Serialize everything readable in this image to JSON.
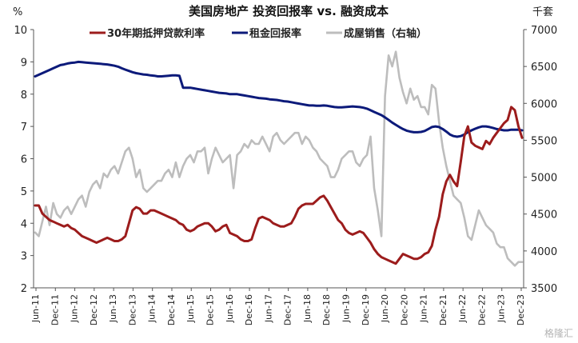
{
  "chart_data": {
    "type": "line",
    "title": "美国房地产 投资回报率 vs. 融资成本",
    "left_axis_label": "%",
    "right_axis_label": "千套",
    "left_ylim": [
      2,
      10
    ],
    "left_yticks": [
      2,
      3,
      4,
      5,
      6,
      7,
      8,
      9,
      10
    ],
    "right_ylim": [
      3500,
      7000
    ],
    "right_yticks": [
      3500,
      4000,
      4500,
      5000,
      5500,
      6000,
      6500,
      7000
    ],
    "x_tick_labels": [
      "Jun-11",
      "Dec-11",
      "Jun-12",
      "Dec-12",
      "Jun-13",
      "Dec-13",
      "Jun-14",
      "Dec-14",
      "Jun-15",
      "Dec-15",
      "Jun-16",
      "Dec-16",
      "Jun-17",
      "Dec-17",
      "Jun-18",
      "Dec-18",
      "Jun-19",
      "Dec-19",
      "Jun-20",
      "Dec-20",
      "Jun-21",
      "Dec-21",
      "Jun-22",
      "Dec-22",
      "Jun-23",
      "Dec-23"
    ],
    "x_start": "Jun-11",
    "x_end": "Dec-23",
    "grid": false,
    "legend_position": "top",
    "series": [
      {
        "name": "30年期抵押贷款利率",
        "axis": "left",
        "color": "#9c1c1c",
        "values": [
          4.55,
          4.55,
          4.3,
          4.2,
          4.1,
          4.05,
          4.0,
          3.95,
          3.9,
          3.95,
          3.85,
          3.8,
          3.7,
          3.6,
          3.55,
          3.5,
          3.45,
          3.4,
          3.45,
          3.5,
          3.55,
          3.5,
          3.45,
          3.45,
          3.5,
          3.6,
          4.0,
          4.4,
          4.5,
          4.45,
          4.3,
          4.3,
          4.4,
          4.4,
          4.35,
          4.3,
          4.25,
          4.2,
          4.15,
          4.1,
          4.0,
          3.95,
          3.8,
          3.75,
          3.8,
          3.9,
          3.95,
          4.0,
          4.0,
          3.9,
          3.75,
          3.8,
          3.9,
          3.95,
          3.7,
          3.65,
          3.6,
          3.5,
          3.45,
          3.45,
          3.5,
          3.85,
          4.15,
          4.2,
          4.15,
          4.1,
          4.0,
          3.95,
          3.9,
          3.9,
          3.95,
          4.0,
          4.2,
          4.45,
          4.55,
          4.6,
          4.6,
          4.6,
          4.7,
          4.8,
          4.85,
          4.7,
          4.5,
          4.3,
          4.1,
          4.0,
          3.8,
          3.7,
          3.65,
          3.7,
          3.75,
          3.7,
          3.55,
          3.4,
          3.2,
          3.05,
          2.95,
          2.9,
          2.85,
          2.8,
          2.75,
          2.9,
          3.05,
          3.0,
          2.95,
          2.9,
          2.9,
          2.95,
          3.05,
          3.1,
          3.3,
          3.8,
          4.2,
          4.9,
          5.3,
          5.5,
          5.3,
          5.15,
          5.9,
          6.7,
          7.0,
          6.5,
          6.4,
          6.35,
          6.3,
          6.55,
          6.45,
          6.65,
          6.8,
          6.95,
          7.1,
          7.2,
          7.6,
          7.5,
          7.0,
          6.65
        ]
      },
      {
        "name": "租金回报率",
        "axis": "left",
        "color": "#0c1a7a",
        "values": [
          8.55,
          8.6,
          8.65,
          8.7,
          8.75,
          8.8,
          8.85,
          8.9,
          8.92,
          8.95,
          8.97,
          8.98,
          9.0,
          8.99,
          8.98,
          8.97,
          8.96,
          8.95,
          8.94,
          8.93,
          8.92,
          8.9,
          8.88,
          8.85,
          8.8,
          8.76,
          8.72,
          8.68,
          8.65,
          8.63,
          8.61,
          8.6,
          8.58,
          8.57,
          8.55,
          8.55,
          8.56,
          8.57,
          8.58,
          8.58,
          8.57,
          8.2,
          8.2,
          8.2,
          8.18,
          8.16,
          8.14,
          8.12,
          8.1,
          8.08,
          8.06,
          8.04,
          8.03,
          8.02,
          8.0,
          8.0,
          8.0,
          7.98,
          7.96,
          7.94,
          7.92,
          7.9,
          7.88,
          7.87,
          7.86,
          7.84,
          7.83,
          7.82,
          7.8,
          7.78,
          7.77,
          7.75,
          7.73,
          7.71,
          7.69,
          7.67,
          7.65,
          7.65,
          7.64,
          7.64,
          7.65,
          7.64,
          7.62,
          7.6,
          7.59,
          7.59,
          7.6,
          7.61,
          7.62,
          7.61,
          7.6,
          7.58,
          7.55,
          7.5,
          7.45,
          7.4,
          7.35,
          7.28,
          7.2,
          7.12,
          7.05,
          6.98,
          6.92,
          6.87,
          6.84,
          6.82,
          6.82,
          6.83,
          6.86,
          6.92,
          6.98,
          7.0,
          6.98,
          6.92,
          6.84,
          6.75,
          6.7,
          6.68,
          6.7,
          6.75,
          6.82,
          6.88,
          6.93,
          6.97,
          7.0,
          7.0,
          6.98,
          6.95,
          6.92,
          6.9,
          6.88,
          6.88,
          6.9,
          6.9,
          6.9,
          6.88
        ]
      },
      {
        "name": "成屋销售（右轴）",
        "axis": "right",
        "color": "#bdbdbd",
        "values": [
          4250,
          4200,
          4400,
          4600,
          4350,
          4650,
          4500,
          4450,
          4550,
          4600,
          4500,
          4600,
          4700,
          4750,
          4600,
          4800,
          4900,
          4950,
          4850,
          5050,
          5000,
          5100,
          5150,
          5050,
          5200,
          5350,
          5400,
          5250,
          5000,
          5100,
          4850,
          4800,
          4850,
          4900,
          4950,
          4950,
          5050,
          5100,
          5000,
          5200,
          5000,
          5150,
          5250,
          5300,
          5200,
          5350,
          5350,
          5400,
          5050,
          5250,
          5400,
          5300,
          5200,
          5250,
          5300,
          4850,
          5300,
          5350,
          5450,
          5400,
          5500,
          5450,
          5450,
          5550,
          5450,
          5350,
          5550,
          5600,
          5500,
          5450,
          5500,
          5550,
          5600,
          5600,
          5450,
          5550,
          5500,
          5400,
          5350,
          5250,
          5200,
          5150,
          5000,
          5000,
          5100,
          5250,
          5300,
          5350,
          5350,
          5200,
          5150,
          5250,
          5300,
          5550,
          4850,
          4550,
          4200,
          6100,
          6650,
          6500,
          6700,
          6350,
          6150,
          6000,
          6200,
          6050,
          6100,
          5950,
          5950,
          5850,
          6250,
          6200,
          5750,
          5400,
          5150,
          4950,
          4750,
          4700,
          4650,
          4450,
          4200,
          4150,
          4350,
          4550,
          4450,
          4350,
          4300,
          4250,
          4100,
          4050,
          4050,
          3900,
          3850,
          3800,
          3850,
          3850
        ]
      }
    ]
  },
  "watermark": "格隆汇"
}
